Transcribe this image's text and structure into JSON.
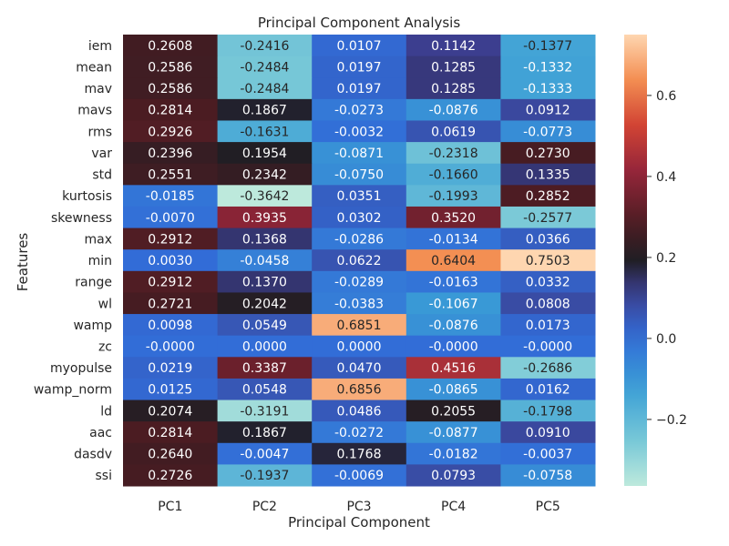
{
  "chart_data": {
    "type": "heatmap",
    "title": "Principal Component Analysis",
    "xlabel": "Principal Component",
    "ylabel": "Features",
    "columns": [
      "PC1",
      "PC2",
      "PC3",
      "PC4",
      "PC5"
    ],
    "rows": [
      "iem",
      "mean",
      "mav",
      "mavs",
      "rms",
      "var",
      "std",
      "kurtosis",
      "skewness",
      "max",
      "min",
      "range",
      "wl",
      "wamp",
      "zc",
      "myopulse",
      "wamp_norm",
      "ld",
      "aac",
      "dasdv",
      "ssi"
    ],
    "values": [
      [
        0.2608,
        -0.2416,
        0.0107,
        0.1142,
        -0.1377
      ],
      [
        0.2586,
        -0.2484,
        0.0197,
        0.1285,
        -0.1332
      ],
      [
        0.2586,
        -0.2484,
        0.0197,
        0.1285,
        -0.1333
      ],
      [
        0.2814,
        0.1867,
        -0.0273,
        -0.0876,
        0.0912
      ],
      [
        0.2926,
        -0.1631,
        -0.0032,
        0.0619,
        -0.0773
      ],
      [
        0.2396,
        0.1954,
        -0.0871,
        -0.2318,
        0.273
      ],
      [
        0.2551,
        0.2342,
        -0.075,
        -0.166,
        0.1335
      ],
      [
        -0.0185,
        -0.3642,
        0.0351,
        -0.1993,
        0.2852
      ],
      [
        -0.007,
        0.3935,
        0.0302,
        0.352,
        -0.2577
      ],
      [
        0.2912,
        0.1368,
        -0.0286,
        -0.0134,
        0.0366
      ],
      [
        0.003,
        -0.0458,
        0.0622,
        0.6404,
        0.7503
      ],
      [
        0.2912,
        0.137,
        -0.0289,
        -0.0163,
        0.0332
      ],
      [
        0.2721,
        0.2042,
        -0.0383,
        -0.1067,
        0.0808
      ],
      [
        0.0098,
        0.0549,
        0.6851,
        -0.0876,
        0.0173
      ],
      [
        -0.0,
        0.0,
        0.0,
        -0.0,
        -0.0
      ],
      [
        0.0219,
        0.3387,
        0.047,
        0.4516,
        -0.2686
      ],
      [
        0.0125,
        0.0548,
        0.6856,
        -0.0865,
        0.0162
      ],
      [
        0.2074,
        -0.3191,
        0.0486,
        0.2055,
        -0.1798
      ],
      [
        0.2814,
        0.1867,
        -0.0272,
        -0.0877,
        0.091
      ],
      [
        0.264,
        -0.0047,
        0.1768,
        -0.0182,
        -0.0037
      ],
      [
        0.2726,
        -0.1937,
        -0.0069,
        0.0793,
        -0.0758
      ]
    ],
    "vmin": -0.3642,
    "vmax": 0.7503,
    "colormap": "icefire",
    "colorbar_ticks": [
      -0.2,
      0.0,
      0.2,
      0.4,
      0.6
    ]
  }
}
